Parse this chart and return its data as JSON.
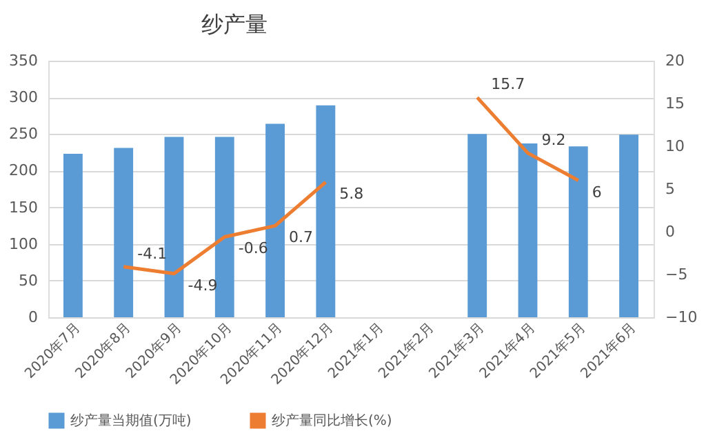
{
  "chart_data": {
    "type": "bar",
    "title": "纱产量",
    "categories": [
      "2020年7月",
      "2020年8月",
      "2020年9月",
      "2020年10月",
      "2020年11月",
      "2020年12月",
      "2021年1月",
      "2021年2月",
      "2021年3月",
      "2021年4月",
      "2021年5月",
      "2021年6月"
    ],
    "series": [
      {
        "name": "纱产量当期值(万吨)",
        "color": "#5b9bd5",
        "values": [
          223,
          231,
          246,
          246,
          264,
          289,
          null,
          null,
          250,
          237,
          233,
          249
        ]
      },
      {
        "name": "纱产量同比增长(%)",
        "type": "line",
        "axis": "y2",
        "color": "#ed7d31",
        "values": [
          null,
          -4.1,
          -4.9,
          -0.6,
          0.7,
          5.8,
          null,
          null,
          15.7,
          9.2,
          6,
          null
        ],
        "value_labels": [
          null,
          "-4.1",
          "-4.9",
          "-0.6",
          "0.7",
          "5.8",
          null,
          null,
          "15.7",
          "9.2",
          "6",
          null
        ]
      }
    ],
    "ylim": [
      0,
      350
    ],
    "yticks": [
      0,
      50,
      100,
      150,
      200,
      250,
      300,
      350
    ],
    "y2lim": [
      -10,
      20
    ],
    "y2ticks": [
      -10,
      -5,
      0,
      5,
      10,
      15,
      20
    ],
    "grid": "y",
    "legend": "bottom",
    "line_style": "solid",
    "marker": "none"
  }
}
